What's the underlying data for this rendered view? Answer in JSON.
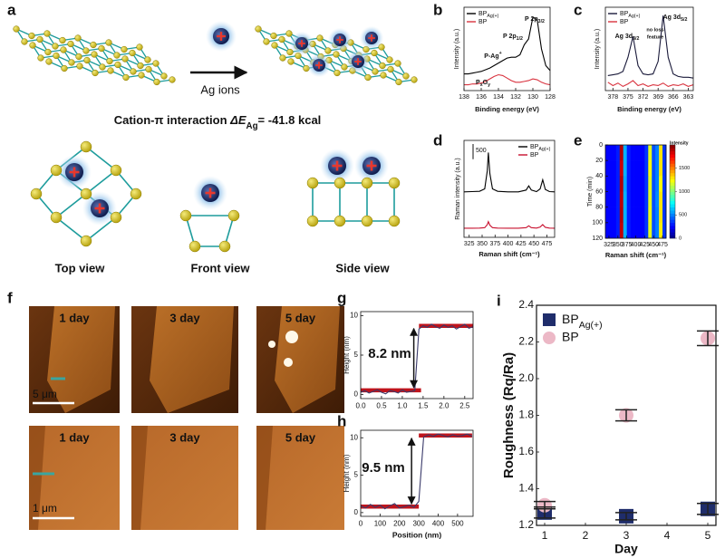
{
  "figure_a": {
    "label": "a",
    "arrow_label": "Ag ions",
    "interaction": {
      "parts": [
        {
          "text": "Cation-π interaction  "
        },
        {
          "text": "ΔE",
          "style": "italic"
        },
        {
          "text": "Ag",
          "shift": "sub"
        },
        {
          "text": "= -41.8 kcal"
        }
      ]
    },
    "views": [
      "Top view",
      "Front view",
      "Side view"
    ]
  },
  "figure_f": {
    "label": "f",
    "times": [
      "1 day",
      "3 day",
      "5 day"
    ],
    "scale_bars": [
      "5 μm",
      "1 μm"
    ]
  },
  "chart_data": [
    {
      "type": "line",
      "label": "b",
      "xlabel": "Binding energy (eV)",
      "ylabel": "Intensity (a.u.)",
      "x": [
        138,
        137.5,
        137,
        136.5,
        136,
        135.5,
        135,
        134.5,
        134,
        133.5,
        133,
        132.5,
        132,
        131.5,
        131,
        130.5,
        130,
        129.5,
        129,
        128.5,
        128
      ],
      "xlim": [
        138,
        128
      ],
      "xticks": [
        138,
        136,
        134,
        132,
        130,
        128
      ],
      "ylim": [
        0,
        10
      ],
      "series": [
        {
          "name": {
            "parts": [
              {
                "text": "BP"
              },
              {
                "text": "Ag(+)",
                "shift": "sub"
              }
            ]
          },
          "color": "#000000",
          "values": [
            2.0,
            2.0,
            2.1,
            2.2,
            2.3,
            2.5,
            2.7,
            3.0,
            3.3,
            3.6,
            3.9,
            4.0,
            4.0,
            4.3,
            5.5,
            6.2,
            8.8,
            8.5,
            5.0,
            3.0,
            2.4
          ]
        },
        {
          "name": "BP",
          "color": "#d9333f",
          "values": [
            0.7,
            0.7,
            0.8,
            0.8,
            0.9,
            1.1,
            1.4,
            1.7,
            1.9,
            1.8,
            1.5,
            1.2,
            1.0,
            1.0,
            1.1,
            1.2,
            1.4,
            1.3,
            1.0,
            0.8,
            0.7
          ]
        }
      ],
      "annotations": [
        {
          "parts": [
            {
              "text": "P 2p"
            },
            {
              "text": "3/2",
              "shift": "sub"
            }
          ]
        },
        {
          "parts": [
            {
              "text": "P 2p"
            },
            {
              "text": "1/2",
              "shift": "sub"
            }
          ]
        },
        {
          "parts": [
            {
              "text": "P-Ag"
            },
            {
              "text": "+",
              "shift": "super"
            }
          ]
        },
        {
          "parts": [
            {
              "text": "P"
            },
            {
              "text": "x",
              "shift": "sub"
            },
            {
              "text": "O"
            },
            {
              "text": "y",
              "shift": "sub"
            }
          ]
        }
      ]
    },
    {
      "type": "line",
      "label": "c",
      "xlabel": "Binding energy (eV)",
      "ylabel": "Intensity (a.u.)",
      "x": [
        379,
        378,
        377,
        376,
        375,
        374,
        373,
        372,
        371,
        370,
        369,
        368,
        367,
        366,
        365,
        364,
        363,
        362
      ],
      "xlim": [
        379.5,
        362
      ],
      "xticks": [
        378,
        375,
        372,
        369,
        366,
        363
      ],
      "ylim": [
        0,
        10
      ],
      "series": [
        {
          "name": {
            "parts": [
              {
                "text": "BP"
              },
              {
                "text": "Ag(+)",
                "shift": "sub"
              }
            ]
          },
          "color": "#1a1a3a",
          "values": [
            1.8,
            1.9,
            2.0,
            2.3,
            4.0,
            6.5,
            3.0,
            2.0,
            1.9,
            2.0,
            3.5,
            9.0,
            4.0,
            2.0,
            1.7,
            1.6,
            1.6,
            1.5
          ]
        },
        {
          "name": "BP",
          "color": "#d9333f",
          "values": [
            1.0,
            0.6,
            0.9,
            0.5,
            0.8,
            1.2,
            0.6,
            0.8,
            0.5,
            0.7,
            0.6,
            0.9,
            0.5,
            0.7,
            0.6,
            0.8,
            0.5,
            0.7
          ]
        }
      ],
      "annotations": [
        {
          "parts": [
            {
              "text": "Ag 3d"
            },
            {
              "text": "5/2",
              "shift": "sub"
            }
          ]
        },
        {
          "parts": [
            {
              "text": "Ag 3d"
            },
            {
              "text": "3/2",
              "shift": "sub"
            }
          ]
        },
        "no loss",
        "feature"
      ]
    },
    {
      "type": "line",
      "label": "d",
      "xlabel": "Raman shift (cm⁻¹)",
      "ylabel": "Raman intensity (a.u.)",
      "x": [
        315,
        330,
        345,
        355,
        360,
        362,
        365,
        370,
        380,
        400,
        420,
        435,
        440,
        445,
        455,
        462,
        467,
        472,
        480,
        490
      ],
      "xlim": [
        315,
        490
      ],
      "xticks": [
        325,
        350,
        375,
        400,
        425,
        450,
        475
      ],
      "ylim": [
        0,
        3200
      ],
      "scale_bar": 500,
      "series": [
        {
          "name": {
            "parts": [
              {
                "text": "BP"
              },
              {
                "text": "Ag(+)",
                "shift": "sub"
              }
            ]
          },
          "color": "#000000",
          "values": [
            1500,
            1510,
            1520,
            1600,
            2200,
            2800,
            2100,
            1600,
            1520,
            1500,
            1500,
            1560,
            1700,
            1560,
            1510,
            1600,
            1900,
            1580,
            1510,
            1500
          ]
        },
        {
          "name": "BP",
          "color": "#c8102e",
          "values": [
            300,
            300,
            305,
            320,
            420,
            520,
            400,
            320,
            305,
            300,
            300,
            320,
            380,
            320,
            305,
            340,
            420,
            330,
            305,
            300
          ]
        }
      ]
    },
    {
      "type": "heatmap",
      "label": "e",
      "xlabel": "Raman shift (cm⁻¹)",
      "ylabel": "Time (min)",
      "colormap": "jet",
      "x_bins": [
        315,
        325,
        335,
        345,
        355,
        365,
        375,
        385,
        395,
        405,
        415,
        425,
        435,
        445,
        455,
        465,
        475,
        485
      ],
      "y_bins": [
        0,
        20,
        40,
        60,
        80,
        100,
        120
      ],
      "xlim": [
        315,
        485
      ],
      "xticks": [
        325,
        350,
        375,
        400,
        425,
        450,
        475
      ],
      "ylim": [
        120,
        0
      ],
      "yticks": [
        0,
        20,
        40,
        60,
        80,
        100,
        120
      ],
      "zlim": [
        0,
        2000
      ],
      "colorbar": {
        "label": "Intensity",
        "ticks": [
          0,
          500,
          1000,
          1500
        ]
      },
      "values": [
        [
          250,
          250,
          250,
          300,
          1900,
          600,
          300,
          250,
          250,
          250,
          250,
          350,
          1200,
          400,
          500,
          1300,
          350
        ],
        [
          250,
          250,
          250,
          300,
          1850,
          600,
          300,
          250,
          250,
          250,
          250,
          350,
          1250,
          400,
          500,
          1300,
          350
        ],
        [
          250,
          250,
          250,
          300,
          1900,
          580,
          300,
          250,
          250,
          250,
          250,
          350,
          1200,
          400,
          500,
          1250,
          350
        ],
        [
          250,
          250,
          250,
          300,
          1880,
          600,
          300,
          250,
          250,
          250,
          250,
          350,
          1200,
          400,
          520,
          1300,
          350
        ],
        [
          250,
          250,
          250,
          300,
          1900,
          600,
          300,
          250,
          250,
          250,
          250,
          350,
          1220,
          400,
          500,
          1300,
          350
        ],
        [
          250,
          250,
          250,
          300,
          1870,
          600,
          300,
          250,
          250,
          250,
          250,
          350,
          1200,
          400,
          500,
          1280,
          350
        ]
      ]
    },
    {
      "type": "line",
      "label": "g",
      "ylabel": "Height (nm)",
      "x": [
        0,
        0.1,
        0.2,
        0.3,
        0.4,
        0.5,
        0.6,
        0.7,
        0.8,
        0.9,
        1.0,
        1.1,
        1.2,
        1.3,
        1.4,
        1.5,
        1.6,
        1.7,
        1.8,
        1.9,
        2.0,
        2.1,
        2.2,
        2.3,
        2.4,
        2.5,
        2.6,
        2.7
      ],
      "xlim": [
        0,
        2.7
      ],
      "xticks": [
        {
          "value": 0,
          "label": "0.0"
        },
        0.5,
        {
          "value": 1,
          "label": "1.0"
        },
        1.5,
        {
          "value": 2,
          "label": "2.0"
        },
        2.5
      ],
      "ylim": [
        -0.5,
        10.5
      ],
      "yticks": [
        0,
        5,
        10
      ],
      "series": [
        {
          "color": "#3a3a6a",
          "values": [
            0.3,
            0.5,
            0.2,
            0.4,
            0.6,
            0.3,
            0.1,
            0.5,
            0.4,
            0.2,
            0.6,
            0.3,
            0.4,
            0.5,
            8.3,
            8.7,
            8.5,
            8.9,
            8.6,
            8.4,
            8.8,
            8.5,
            8.7,
            8.3,
            8.6,
            8.9,
            8.4,
            8.6
          ]
        }
      ],
      "reference_lines": [
        {
          "xmin": 0,
          "xmax": 1.45,
          "value": 0.55,
          "color": "#c0141c"
        },
        {
          "xmin": 1.4,
          "xmax": 2.7,
          "value": 8.7,
          "color": "#c0141c"
        }
      ],
      "annotations": [
        "8.2 nm"
      ]
    },
    {
      "type": "line",
      "label": "h",
      "xlabel": "Position (nm)",
      "ylabel": "Height (nm)",
      "x": [
        0,
        25,
        50,
        75,
        100,
        125,
        150,
        175,
        200,
        225,
        250,
        275,
        300,
        325,
        350,
        375,
        400,
        425,
        450,
        475,
        500,
        525,
        550,
        575
      ],
      "xlim": [
        0,
        580
      ],
      "xticks": [
        0,
        100,
        200,
        300,
        400,
        500
      ],
      "ylim": [
        -0.5,
        11
      ],
      "yticks": [
        0,
        5,
        10
      ],
      "series": [
        {
          "color": "#3a3a6a",
          "values": [
            0.9,
            0.6,
            1.1,
            0.7,
            1.0,
            0.5,
            0.9,
            1.2,
            0.6,
            0.8,
            1.0,
            0.7,
            1.5,
            10.1,
            10.4,
            10.2,
            10.5,
            10.3,
            10.1,
            10.4,
            10.2,
            10.3,
            10.5,
            10.2
          ]
        }
      ],
      "reference_lines": [
        {
          "xmin": 0,
          "xmax": 300,
          "value": 0.8,
          "color": "#c0141c"
        },
        {
          "xmin": 300,
          "xmax": 575,
          "value": 10.3,
          "color": "#c0141c"
        }
      ],
      "annotations": [
        "9.5 nm"
      ]
    },
    {
      "type": "scatter",
      "label": "i",
      "xlabel": "Day",
      "ylabel": "Roughness (Rq/Ra)",
      "x": [
        1,
        3,
        5
      ],
      "xlim": [
        0.8,
        5.2
      ],
      "xticks": [
        1,
        2,
        3,
        4,
        5
      ],
      "ylim": [
        1.2,
        2.4
      ],
      "yticks": [
        1.2,
        1.4,
        1.6,
        1.8,
        {
          "value": 2,
          "label": "2.0"
        },
        2.2,
        2.4
      ],
      "series": [
        {
          "name": {
            "parts": [
              {
                "text": "BP"
              },
              {
                "text": "Ag(+)",
                "shift": "sub"
              }
            ]
          },
          "color": "#1f2d6b",
          "marker": "square",
          "values": [
            1.27,
            1.25,
            1.29
          ],
          "errors": [
            0.03,
            0.02,
            0.03
          ]
        },
        {
          "name": "BP",
          "color": "#ecb8c6",
          "marker": "circle",
          "values": [
            1.31,
            1.8,
            2.22
          ],
          "errors": [
            0.02,
            0.03,
            0.04
          ]
        }
      ]
    }
  ]
}
